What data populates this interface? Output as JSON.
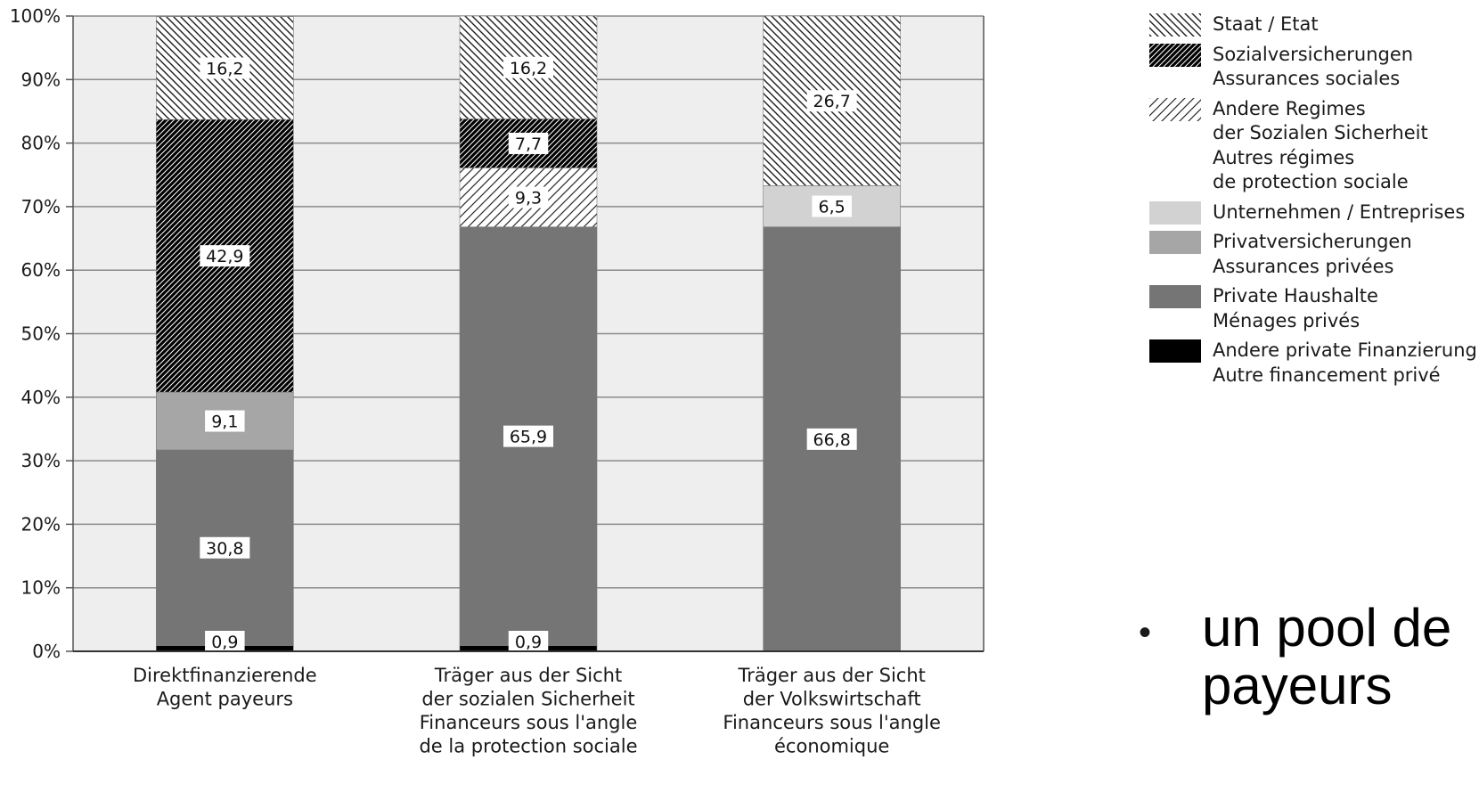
{
  "chart_data": {
    "type": "bar",
    "stacked": true,
    "categories": [
      "Direktfinanzierende\nAgent payeurs",
      "Träger aus der Sicht\nder sozialen Sicherheit\nFinanceurs sous l'angle\nde la protection sociale",
      "Träger aus der Sicht\nder Volkswirtschaft\nFinanceurs sous l'angle\néconomique"
    ],
    "series": [
      {
        "name": "Andere private Finanzierung\nAutre financement privé",
        "values": [
          0.9,
          0.9,
          0
        ],
        "labels": [
          "0,9",
          "0,9",
          ""
        ],
        "fill": "#000000",
        "pattern": "solid"
      },
      {
        "name": "Private Haushalte\nMénages privés",
        "values": [
          30.8,
          65.9,
          66.8
        ],
        "labels": [
          "30,8",
          "65,9",
          "66,8"
        ],
        "fill": "#757575",
        "pattern": "solid"
      },
      {
        "name": "Privatversicherungen\nAssurances privées",
        "values": [
          9.1,
          0,
          0
        ],
        "labels": [
          "9,1",
          "",
          ""
        ],
        "fill": "#a6a6a6",
        "pattern": "solid"
      },
      {
        "name": "Unternehmen / Entreprises",
        "values": [
          0,
          0,
          6.5
        ],
        "labels": [
          "",
          "",
          "6,5"
        ],
        "fill": "#d2d2d2",
        "pattern": "solid"
      },
      {
        "name": "Andere Regimes\nder Sozialen Sicherheit\nAutres régimes\nde protection sociale",
        "values": [
          0,
          9.3,
          0
        ],
        "labels": [
          "",
          "9,3",
          ""
        ],
        "fill": "#ffffff",
        "pattern": "light-forward"
      },
      {
        "name": "Sozialversicherungen\nAssurances sociales",
        "values": [
          42.9,
          7.7,
          0
        ],
        "labels": [
          "42,9",
          "7,7",
          ""
        ],
        "fill": "#000000",
        "pattern": "dense-forward"
      },
      {
        "name": "Staat / Etat",
        "values": [
          16.2,
          16.2,
          26.7
        ],
        "labels": [
          "16,2",
          "16,2",
          "26,7"
        ],
        "fill": "#ffffff",
        "pattern": "back"
      }
    ],
    "legend_order": [
      6,
      5,
      4,
      3,
      2,
      1,
      0
    ],
    "ylim": [
      0,
      100
    ],
    "yticks": [
      "0%",
      "10%",
      "20%",
      "30%",
      "40%",
      "50%",
      "60%",
      "70%",
      "80%",
      "90%",
      "100%"
    ],
    "grid": true,
    "legend_position": "right",
    "plot_background": "#eeeeee"
  },
  "bullet": {
    "text": "un pool de\npayeurs"
  }
}
